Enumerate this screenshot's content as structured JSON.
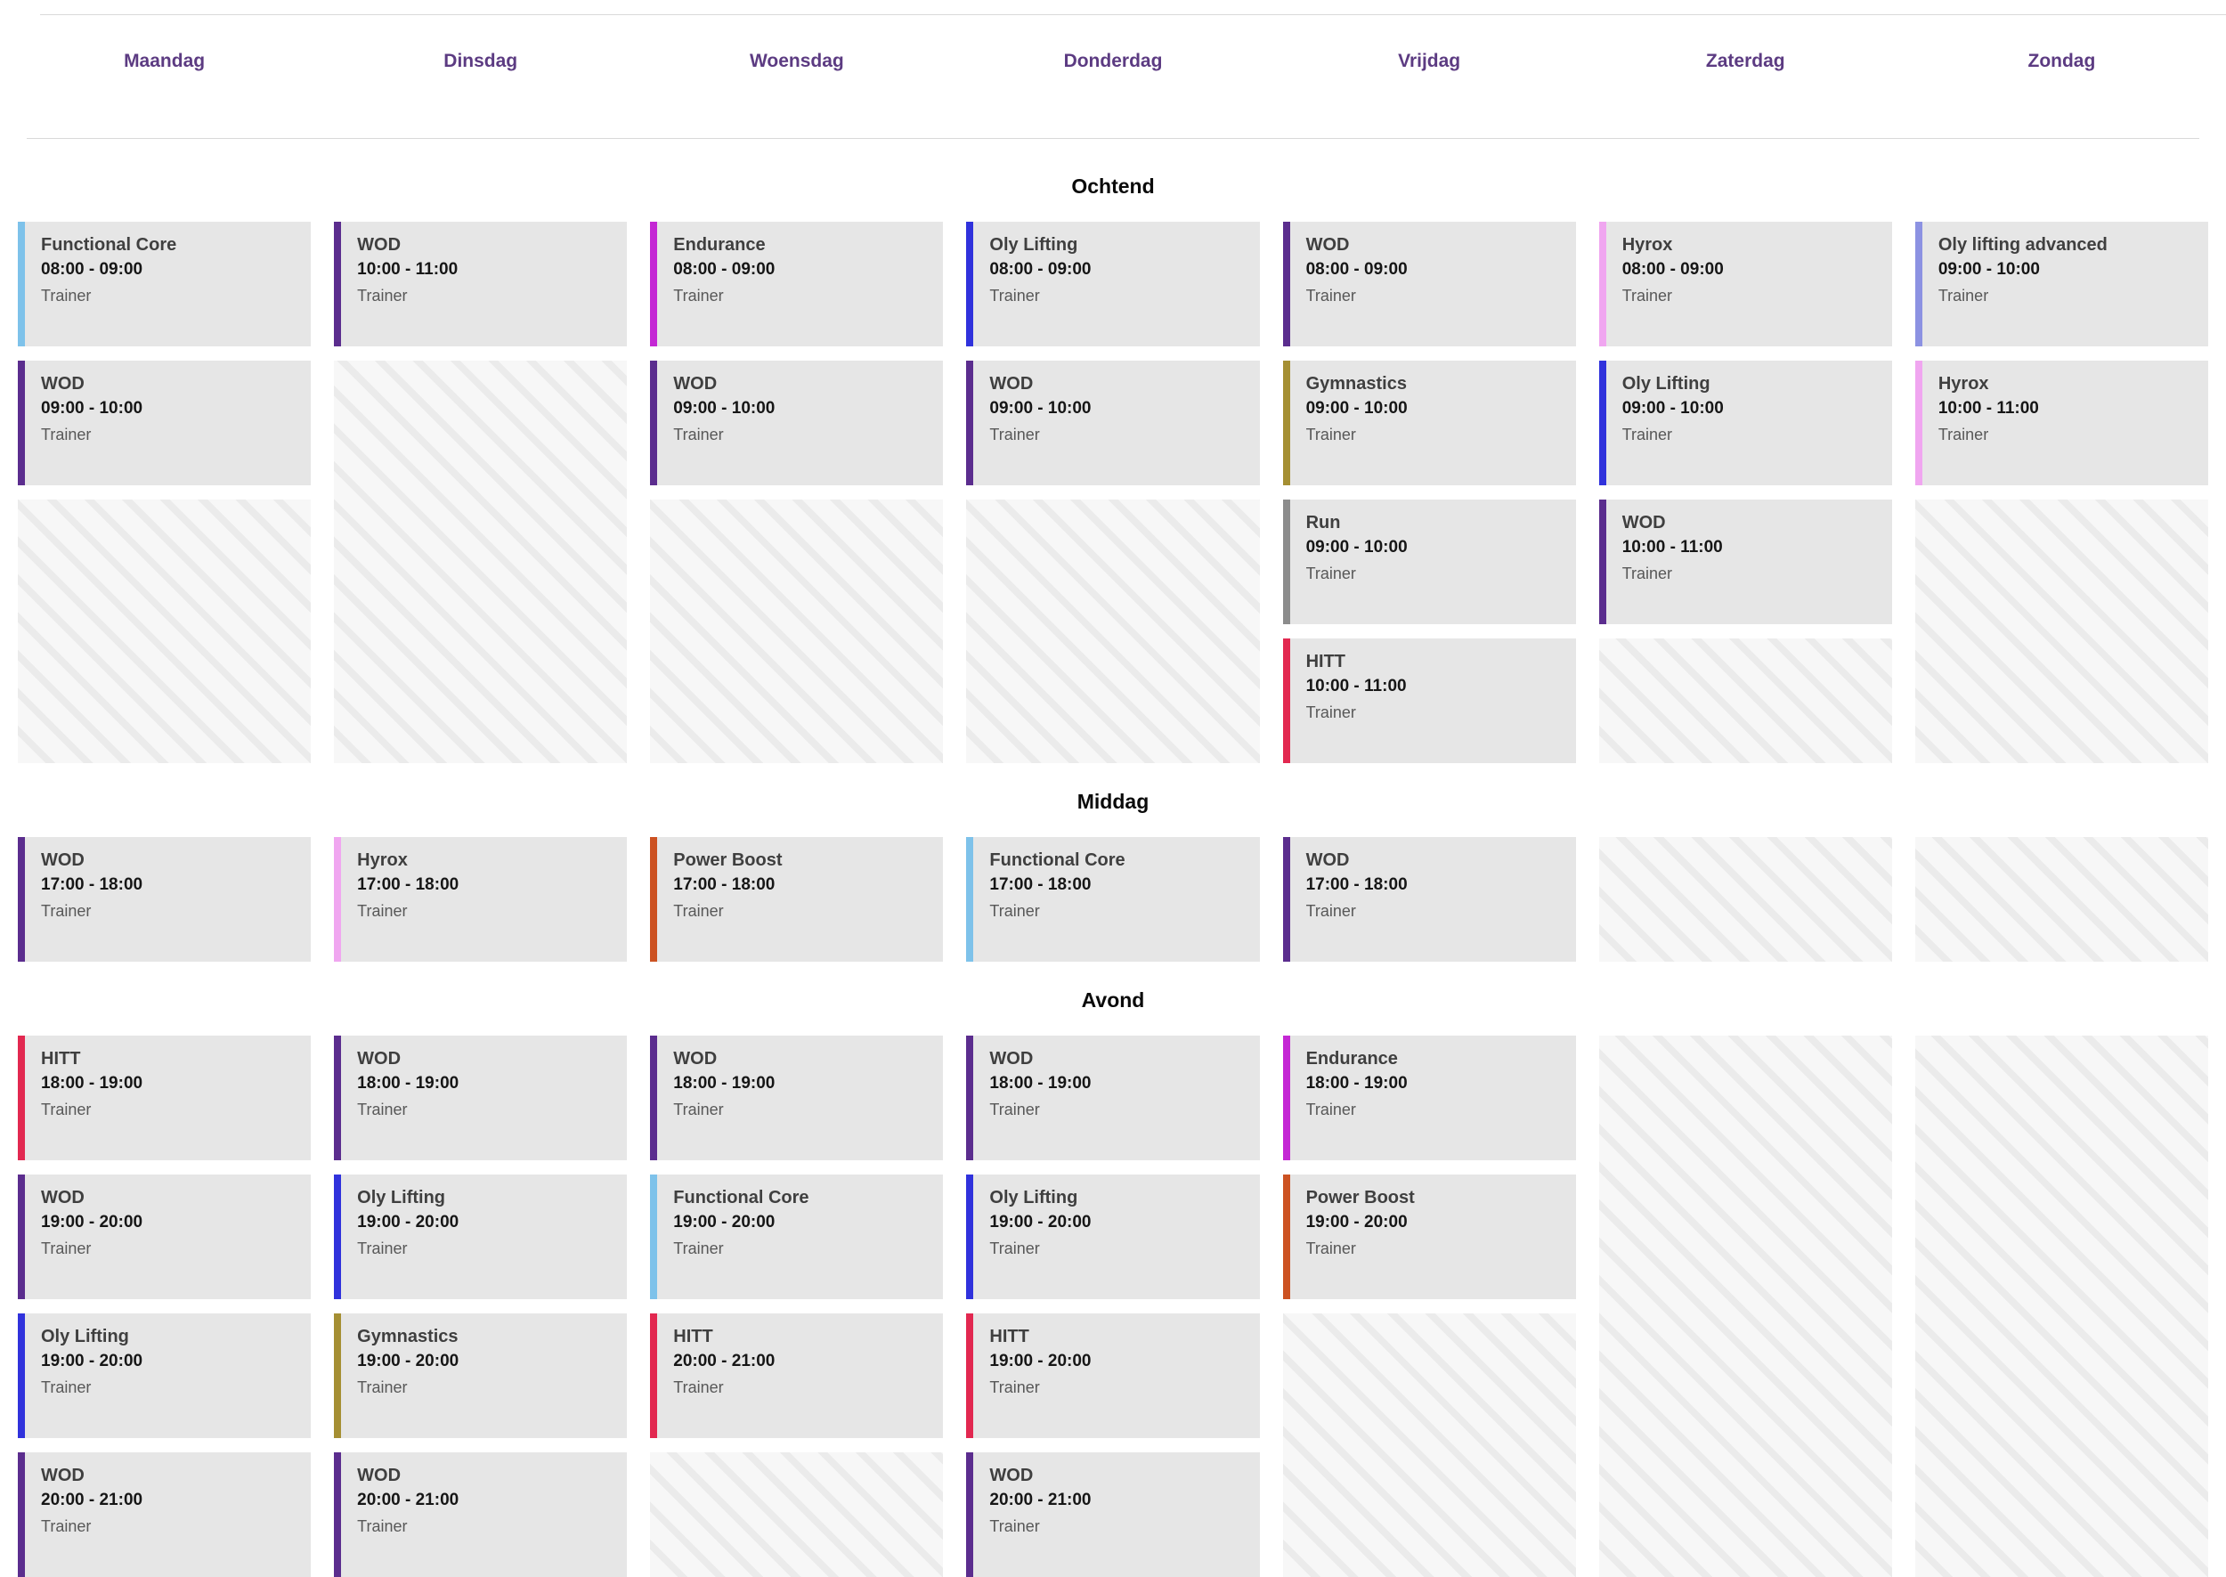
{
  "days": [
    "Maandag",
    "Dinsdag",
    "Woensdag",
    "Donderdag",
    "Vrijdag",
    "Zaterdag",
    "Zondag"
  ],
  "colors": {
    "day_header": "#5C3B82",
    "card_background": "#e6e6e6",
    "divider": "#d9d9d9",
    "empty_background": "#f7f7f7",
    "empty_stripe": "#ebebeb",
    "class_colors": {
      "WOD": "#5B2D8E",
      "Functional Core": "#7EC2EA",
      "Endurance": "#C427D4",
      "Oly Lifting": "#3032DC",
      "Oly lifting advanced": "#8C92E2",
      "Hyrox": "#F0A6F0",
      "Gymnastics": "#A58F33",
      "Run": "#8C8C8C",
      "HITT": "#E22850",
      "Power Boost": "#CC5222"
    }
  },
  "sections": [
    {
      "title": "Ochtend",
      "rows": 4,
      "columns": [
        {
          "day": "Maandag",
          "cards": [
            {
              "title": "Functional Core",
              "time": "08:00 - 09:00",
              "trainer": "Trainer",
              "color": "#7EC2EA"
            },
            {
              "title": "WOD",
              "time": "09:00 - 10:00",
              "trainer": "Trainer",
              "color": "#5B2D8E"
            }
          ]
        },
        {
          "day": "Dinsdag",
          "cards": [
            {
              "title": "WOD",
              "time": "10:00 - 11:00",
              "trainer": "Trainer",
              "color": "#5B2D8E"
            }
          ]
        },
        {
          "day": "Woensdag",
          "cards": [
            {
              "title": "Endurance",
              "time": "08:00 - 09:00",
              "trainer": "Trainer",
              "color": "#C427D4"
            },
            {
              "title": "WOD",
              "time": "09:00 - 10:00",
              "trainer": "Trainer",
              "color": "#5B2D8E"
            }
          ]
        },
        {
          "day": "Donderdag",
          "cards": [
            {
              "title": "Oly Lifting",
              "time": "08:00 - 09:00",
              "trainer": "Trainer",
              "color": "#3032DC"
            },
            {
              "title": "WOD",
              "time": "09:00 - 10:00",
              "trainer": "Trainer",
              "color": "#5B2D8E"
            }
          ]
        },
        {
          "day": "Vrijdag",
          "cards": [
            {
              "title": "WOD",
              "time": "08:00 - 09:00",
              "trainer": "Trainer",
              "color": "#5B2D8E"
            },
            {
              "title": "Gymnastics",
              "time": "09:00 - 10:00",
              "trainer": "Trainer",
              "color": "#A58F33"
            },
            {
              "title": "Run",
              "time": "09:00 - 10:00",
              "trainer": "Trainer",
              "color": "#8C8C8C"
            },
            {
              "title": "HITT",
              "time": "10:00 - 11:00",
              "trainer": "Trainer",
              "color": "#E22850"
            }
          ]
        },
        {
          "day": "Zaterdag",
          "cards": [
            {
              "title": "Hyrox",
              "time": "08:00 - 09:00",
              "trainer": "Trainer",
              "color": "#F0A6F0"
            },
            {
              "title": "Oly Lifting",
              "time": "09:00 - 10:00",
              "trainer": "Trainer",
              "color": "#3032DC"
            },
            {
              "title": "WOD",
              "time": "10:00 - 11:00",
              "trainer": "Trainer",
              "color": "#5B2D8E"
            }
          ]
        },
        {
          "day": "Zondag",
          "cards": [
            {
              "title": "Oly lifting advanced",
              "time": "09:00 - 10:00",
              "trainer": "Trainer",
              "color": "#8C92E2"
            },
            {
              "title": "Hyrox",
              "time": "10:00 - 11:00",
              "trainer": "Trainer",
              "color": "#F0A6F0"
            }
          ]
        }
      ]
    },
    {
      "title": "Middag",
      "rows": 1,
      "columns": [
        {
          "day": "Maandag",
          "cards": [
            {
              "title": "WOD",
              "time": "17:00 - 18:00",
              "trainer": "Trainer",
              "color": "#5B2D8E"
            }
          ]
        },
        {
          "day": "Dinsdag",
          "cards": [
            {
              "title": "Hyrox",
              "time": "17:00 - 18:00",
              "trainer": "Trainer",
              "color": "#F0A6F0"
            }
          ]
        },
        {
          "day": "Woensdag",
          "cards": [
            {
              "title": "Power Boost",
              "time": "17:00 - 18:00",
              "trainer": "Trainer",
              "color": "#CC5222"
            }
          ]
        },
        {
          "day": "Donderdag",
          "cards": [
            {
              "title": "Functional Core",
              "time": "17:00 - 18:00",
              "trainer": "Trainer",
              "color": "#7EC2EA"
            }
          ]
        },
        {
          "day": "Vrijdag",
          "cards": [
            {
              "title": "WOD",
              "time": "17:00 - 18:00",
              "trainer": "Trainer",
              "color": "#5B2D8E"
            }
          ]
        },
        {
          "day": "Zaterdag",
          "cards": []
        },
        {
          "day": "Zondag",
          "cards": []
        }
      ]
    },
    {
      "title": "Avond",
      "rows": 4,
      "columns": [
        {
          "day": "Maandag",
          "cards": [
            {
              "title": "HITT",
              "time": "18:00 - 19:00",
              "trainer": "Trainer",
              "color": "#E22850"
            },
            {
              "title": "WOD",
              "time": "19:00 - 20:00",
              "trainer": "Trainer",
              "color": "#5B2D8E"
            },
            {
              "title": "Oly Lifting",
              "time": "19:00 - 20:00",
              "trainer": "Trainer",
              "color": "#3032DC"
            },
            {
              "title": "WOD",
              "time": "20:00 - 21:00",
              "trainer": "Trainer",
              "color": "#5B2D8E"
            }
          ]
        },
        {
          "day": "Dinsdag",
          "cards": [
            {
              "title": "WOD",
              "time": "18:00 - 19:00",
              "trainer": "Trainer",
              "color": "#5B2D8E"
            },
            {
              "title": "Oly Lifting",
              "time": "19:00 - 20:00",
              "trainer": "Trainer",
              "color": "#3032DC"
            },
            {
              "title": "Gymnastics",
              "time": "19:00 - 20:00",
              "trainer": "Trainer",
              "color": "#A58F33"
            },
            {
              "title": "WOD",
              "time": "20:00 - 21:00",
              "trainer": "Trainer",
              "color": "#5B2D8E"
            }
          ]
        },
        {
          "day": "Woensdag",
          "cards": [
            {
              "title": "WOD",
              "time": "18:00 - 19:00",
              "trainer": "Trainer",
              "color": "#5B2D8E"
            },
            {
              "title": "Functional Core",
              "time": "19:00 - 20:00",
              "trainer": "Trainer",
              "color": "#7EC2EA"
            },
            {
              "title": "HITT",
              "time": "20:00 - 21:00",
              "trainer": "Trainer",
              "color": "#E22850"
            }
          ]
        },
        {
          "day": "Donderdag",
          "cards": [
            {
              "title": "WOD",
              "time": "18:00 - 19:00",
              "trainer": "Trainer",
              "color": "#5B2D8E"
            },
            {
              "title": "Oly Lifting",
              "time": "19:00 - 20:00",
              "trainer": "Trainer",
              "color": "#3032DC"
            },
            {
              "title": "HITT",
              "time": "19:00 - 20:00",
              "trainer": "Trainer",
              "color": "#E22850"
            },
            {
              "title": "WOD",
              "time": "20:00 - 21:00",
              "trainer": "Trainer",
              "color": "#5B2D8E"
            }
          ]
        },
        {
          "day": "Vrijdag",
          "cards": [
            {
              "title": "Endurance",
              "time": "18:00 - 19:00",
              "trainer": "Trainer",
              "color": "#C427D4"
            },
            {
              "title": "Power Boost",
              "time": "19:00 - 20:00",
              "trainer": "Trainer",
              "color": "#CC5222"
            }
          ]
        },
        {
          "day": "Zaterdag",
          "cards": []
        },
        {
          "day": "Zondag",
          "cards": []
        }
      ]
    }
  ]
}
